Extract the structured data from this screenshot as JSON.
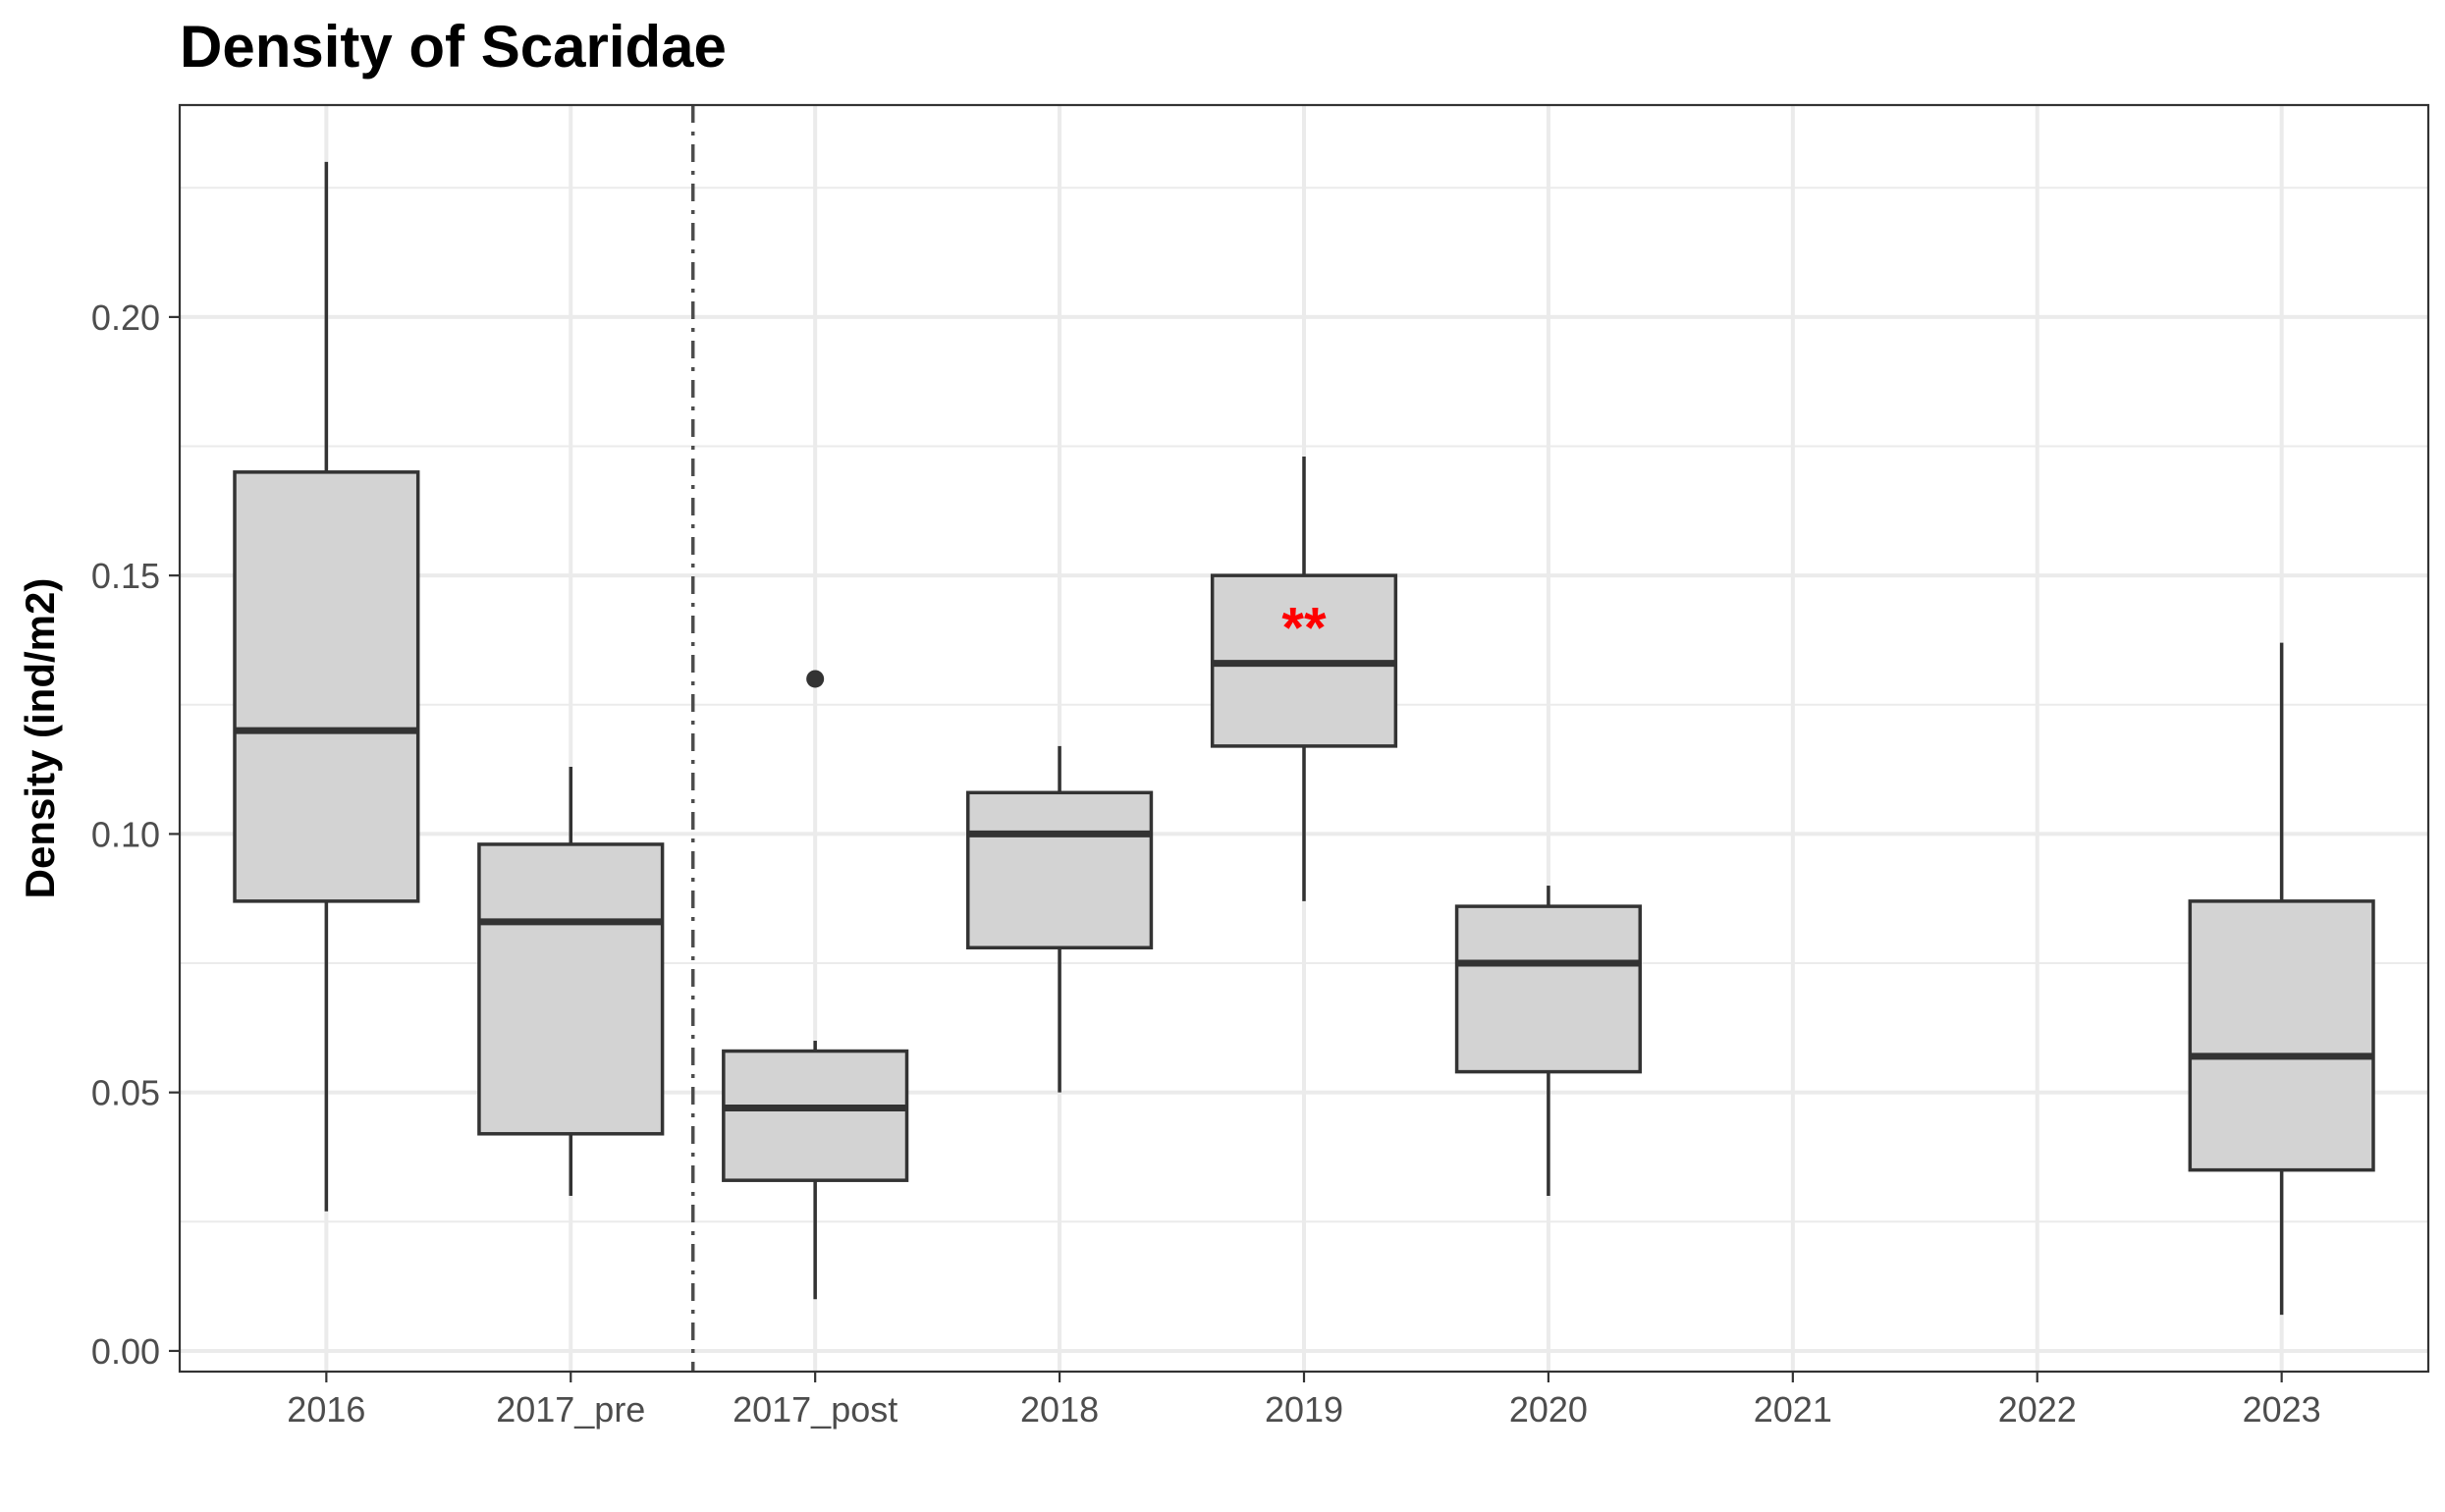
{
  "chart_data": {
    "type": "boxplot",
    "title": "Density of Scaridae",
    "xlabel": "",
    "ylabel": "Density (ind/m2)",
    "ylim": [
      -0.004,
      0.241
    ],
    "yticks": [
      0.0,
      0.05,
      0.1,
      0.15,
      0.2
    ],
    "ytick_labels": [
      "0.00",
      "0.05",
      "0.10",
      "0.15",
      "0.20"
    ],
    "grid": true,
    "categories": [
      "2016",
      "2017_pre",
      "2017_post",
      "2018",
      "2019",
      "2020",
      "2021",
      "2022",
      "2023"
    ],
    "boxes": [
      {
        "category": "2016",
        "min": 0.027,
        "q1": 0.087,
        "median": 0.12,
        "q3": 0.17,
        "max": 0.23,
        "outliers": []
      },
      {
        "category": "2017_pre",
        "min": 0.03,
        "q1": 0.042,
        "median": 0.083,
        "q3": 0.098,
        "max": 0.113,
        "outliers": []
      },
      {
        "category": "2017_post",
        "min": 0.01,
        "q1": 0.033,
        "median": 0.047,
        "q3": 0.058,
        "max": 0.06,
        "outliers": [
          0.13
        ]
      },
      {
        "category": "2018",
        "min": 0.05,
        "q1": 0.078,
        "median": 0.1,
        "q3": 0.108,
        "max": 0.117,
        "outliers": []
      },
      {
        "category": "2019",
        "min": 0.087,
        "q1": 0.117,
        "median": 0.133,
        "q3": 0.15,
        "max": 0.173,
        "outliers": []
      },
      {
        "category": "2020",
        "min": 0.03,
        "q1": 0.054,
        "median": 0.075,
        "q3": 0.086,
        "max": 0.09,
        "outliers": []
      },
      {
        "category": "2023",
        "min": 0.007,
        "q1": 0.035,
        "median": 0.057,
        "q3": 0.087,
        "max": 0.137,
        "outliers": []
      }
    ],
    "annotations": [
      {
        "category": "2019",
        "text": "**",
        "y": 0.141,
        "color": "#ff0000"
      }
    ],
    "vertical_line": {
      "between": [
        "2017_pre",
        "2017_post"
      ],
      "style": "dashdot"
    },
    "colors": {
      "box_fill": "#d3d3d3",
      "box_stroke": "#333333",
      "grid": "#ebebeb",
      "panel_border": "#333333"
    }
  }
}
